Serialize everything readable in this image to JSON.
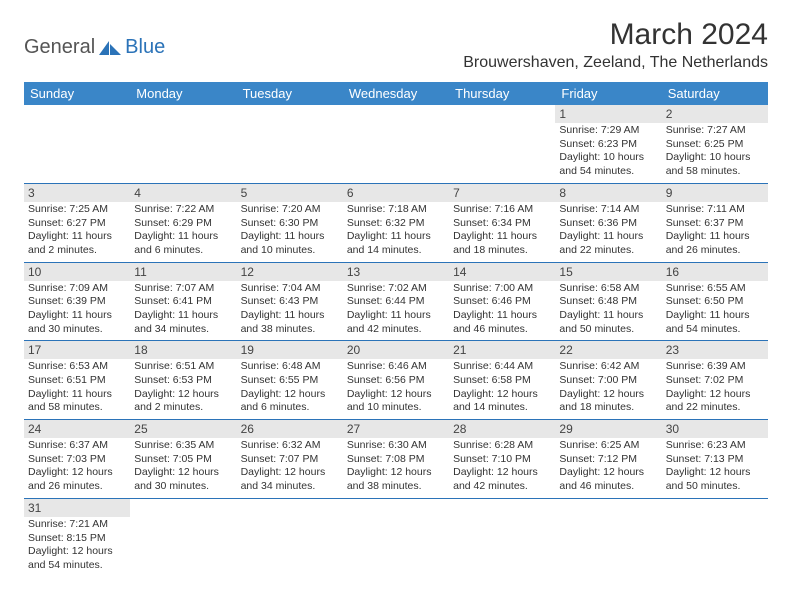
{
  "logo": {
    "part1": "General",
    "part2": "Blue"
  },
  "title": "March 2024",
  "location": "Brouwershaven, Zeeland, The Netherlands",
  "colors": {
    "header_bg": "#3a86c8",
    "header_text": "#ffffff",
    "daynum_bg": "#e7e7e7",
    "row_border": "#2b73b8",
    "logo_blue": "#2b73b8",
    "text": "#333333"
  },
  "weekdays": [
    "Sunday",
    "Monday",
    "Tuesday",
    "Wednesday",
    "Thursday",
    "Friday",
    "Saturday"
  ],
  "weeks": [
    [
      null,
      null,
      null,
      null,
      null,
      {
        "n": "1",
        "sunrise": "Sunrise: 7:29 AM",
        "sunset": "Sunset: 6:23 PM",
        "day": "Daylight: 10 hours and 54 minutes."
      },
      {
        "n": "2",
        "sunrise": "Sunrise: 7:27 AM",
        "sunset": "Sunset: 6:25 PM",
        "day": "Daylight: 10 hours and 58 minutes."
      }
    ],
    [
      {
        "n": "3",
        "sunrise": "Sunrise: 7:25 AM",
        "sunset": "Sunset: 6:27 PM",
        "day": "Daylight: 11 hours and 2 minutes."
      },
      {
        "n": "4",
        "sunrise": "Sunrise: 7:22 AM",
        "sunset": "Sunset: 6:29 PM",
        "day": "Daylight: 11 hours and 6 minutes."
      },
      {
        "n": "5",
        "sunrise": "Sunrise: 7:20 AM",
        "sunset": "Sunset: 6:30 PM",
        "day": "Daylight: 11 hours and 10 minutes."
      },
      {
        "n": "6",
        "sunrise": "Sunrise: 7:18 AM",
        "sunset": "Sunset: 6:32 PM",
        "day": "Daylight: 11 hours and 14 minutes."
      },
      {
        "n": "7",
        "sunrise": "Sunrise: 7:16 AM",
        "sunset": "Sunset: 6:34 PM",
        "day": "Daylight: 11 hours and 18 minutes."
      },
      {
        "n": "8",
        "sunrise": "Sunrise: 7:14 AM",
        "sunset": "Sunset: 6:36 PM",
        "day": "Daylight: 11 hours and 22 minutes."
      },
      {
        "n": "9",
        "sunrise": "Sunrise: 7:11 AM",
        "sunset": "Sunset: 6:37 PM",
        "day": "Daylight: 11 hours and 26 minutes."
      }
    ],
    [
      {
        "n": "10",
        "sunrise": "Sunrise: 7:09 AM",
        "sunset": "Sunset: 6:39 PM",
        "day": "Daylight: 11 hours and 30 minutes."
      },
      {
        "n": "11",
        "sunrise": "Sunrise: 7:07 AM",
        "sunset": "Sunset: 6:41 PM",
        "day": "Daylight: 11 hours and 34 minutes."
      },
      {
        "n": "12",
        "sunrise": "Sunrise: 7:04 AM",
        "sunset": "Sunset: 6:43 PM",
        "day": "Daylight: 11 hours and 38 minutes."
      },
      {
        "n": "13",
        "sunrise": "Sunrise: 7:02 AM",
        "sunset": "Sunset: 6:44 PM",
        "day": "Daylight: 11 hours and 42 minutes."
      },
      {
        "n": "14",
        "sunrise": "Sunrise: 7:00 AM",
        "sunset": "Sunset: 6:46 PM",
        "day": "Daylight: 11 hours and 46 minutes."
      },
      {
        "n": "15",
        "sunrise": "Sunrise: 6:58 AM",
        "sunset": "Sunset: 6:48 PM",
        "day": "Daylight: 11 hours and 50 minutes."
      },
      {
        "n": "16",
        "sunrise": "Sunrise: 6:55 AM",
        "sunset": "Sunset: 6:50 PM",
        "day": "Daylight: 11 hours and 54 minutes."
      }
    ],
    [
      {
        "n": "17",
        "sunrise": "Sunrise: 6:53 AM",
        "sunset": "Sunset: 6:51 PM",
        "day": "Daylight: 11 hours and 58 minutes."
      },
      {
        "n": "18",
        "sunrise": "Sunrise: 6:51 AM",
        "sunset": "Sunset: 6:53 PM",
        "day": "Daylight: 12 hours and 2 minutes."
      },
      {
        "n": "19",
        "sunrise": "Sunrise: 6:48 AM",
        "sunset": "Sunset: 6:55 PM",
        "day": "Daylight: 12 hours and 6 minutes."
      },
      {
        "n": "20",
        "sunrise": "Sunrise: 6:46 AM",
        "sunset": "Sunset: 6:56 PM",
        "day": "Daylight: 12 hours and 10 minutes."
      },
      {
        "n": "21",
        "sunrise": "Sunrise: 6:44 AM",
        "sunset": "Sunset: 6:58 PM",
        "day": "Daylight: 12 hours and 14 minutes."
      },
      {
        "n": "22",
        "sunrise": "Sunrise: 6:42 AM",
        "sunset": "Sunset: 7:00 PM",
        "day": "Daylight: 12 hours and 18 minutes."
      },
      {
        "n": "23",
        "sunrise": "Sunrise: 6:39 AM",
        "sunset": "Sunset: 7:02 PM",
        "day": "Daylight: 12 hours and 22 minutes."
      }
    ],
    [
      {
        "n": "24",
        "sunrise": "Sunrise: 6:37 AM",
        "sunset": "Sunset: 7:03 PM",
        "day": "Daylight: 12 hours and 26 minutes."
      },
      {
        "n": "25",
        "sunrise": "Sunrise: 6:35 AM",
        "sunset": "Sunset: 7:05 PM",
        "day": "Daylight: 12 hours and 30 minutes."
      },
      {
        "n": "26",
        "sunrise": "Sunrise: 6:32 AM",
        "sunset": "Sunset: 7:07 PM",
        "day": "Daylight: 12 hours and 34 minutes."
      },
      {
        "n": "27",
        "sunrise": "Sunrise: 6:30 AM",
        "sunset": "Sunset: 7:08 PM",
        "day": "Daylight: 12 hours and 38 minutes."
      },
      {
        "n": "28",
        "sunrise": "Sunrise: 6:28 AM",
        "sunset": "Sunset: 7:10 PM",
        "day": "Daylight: 12 hours and 42 minutes."
      },
      {
        "n": "29",
        "sunrise": "Sunrise: 6:25 AM",
        "sunset": "Sunset: 7:12 PM",
        "day": "Daylight: 12 hours and 46 minutes."
      },
      {
        "n": "30",
        "sunrise": "Sunrise: 6:23 AM",
        "sunset": "Sunset: 7:13 PM",
        "day": "Daylight: 12 hours and 50 minutes."
      }
    ],
    [
      {
        "n": "31",
        "sunrise": "Sunrise: 7:21 AM",
        "sunset": "Sunset: 8:15 PM",
        "day": "Daylight: 12 hours and 54 minutes."
      },
      null,
      null,
      null,
      null,
      null,
      null
    ]
  ]
}
